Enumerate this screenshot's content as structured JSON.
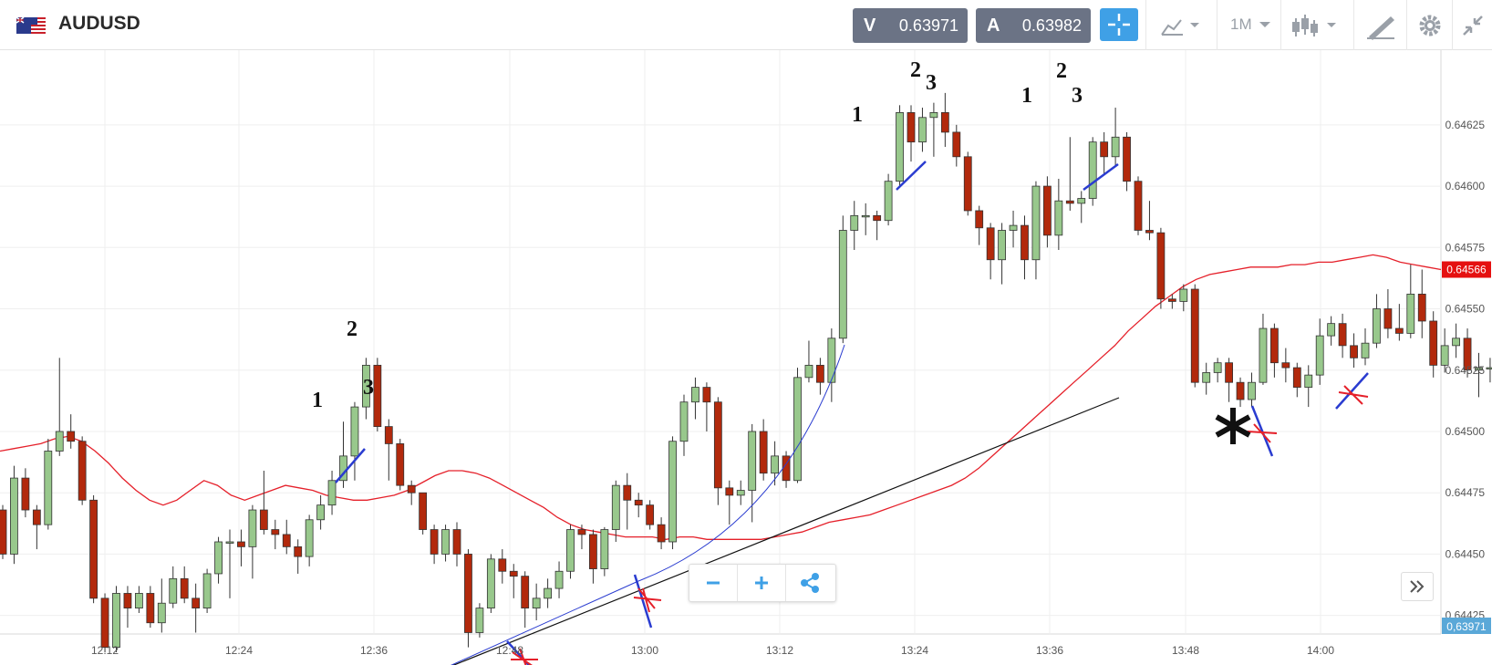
{
  "header": {
    "symbol": "AUDUSD",
    "sell": {
      "letter": "V",
      "value": "0.63971"
    },
    "buy": {
      "letter": "A",
      "value": "0.63982"
    },
    "timeframe": "1M"
  },
  "chart_data": {
    "type": "candlestick",
    "instrument": "AUDUSD",
    "timeframe": "1M",
    "y_axis": {
      "range": [
        0.6441,
        0.64648
      ],
      "ticks": [
        "0.64625",
        "0.64600",
        "0.64575",
        "0.64550",
        "0.64525",
        "0.64500",
        "0.64475",
        "0.64450",
        "0.64425"
      ]
    },
    "x_axis": {
      "ticks": [
        "12:12",
        "12:24",
        "12:36",
        "12:48",
        "13:00",
        "13:12",
        "13:24",
        "13:36",
        "13:48",
        "14:00"
      ]
    },
    "price_label": "0.64566",
    "current_label": "0,63971",
    "candles": [
      [
        0.64468,
        0.6445,
        0.6447,
        0.64448
      ],
      [
        0.6445,
        0.64481,
        0.64486,
        0.64446
      ],
      [
        0.64481,
        0.64468,
        0.64485,
        0.64465
      ],
      [
        0.64468,
        0.64462,
        0.6447,
        0.64452
      ],
      [
        0.64462,
        0.64492,
        0.64497,
        0.6446
      ],
      [
        0.64492,
        0.645,
        0.6453,
        0.6449
      ],
      [
        0.645,
        0.64496,
        0.64507,
        0.64493
      ],
      [
        0.64496,
        0.64472,
        0.64498,
        0.6447
      ],
      [
        0.64472,
        0.64432,
        0.64474,
        0.6443
      ],
      [
        0.64432,
        0.64412,
        0.64434,
        0.6441
      ],
      [
        0.64412,
        0.64434,
        0.64437,
        0.6441
      ],
      [
        0.64434,
        0.64428,
        0.64437,
        0.6442
      ],
      [
        0.64428,
        0.64434,
        0.64437,
        0.64426
      ],
      [
        0.64434,
        0.64422,
        0.64437,
        0.6442
      ],
      [
        0.64422,
        0.6443,
        0.6444,
        0.64418
      ],
      [
        0.6443,
        0.6444,
        0.64445,
        0.64428
      ],
      [
        0.6444,
        0.64432,
        0.64445,
        0.6443
      ],
      [
        0.64432,
        0.64428,
        0.64438,
        0.64418
      ],
      [
        0.64428,
        0.64442,
        0.64444,
        0.64426
      ],
      [
        0.64442,
        0.64455,
        0.64457,
        0.64438
      ],
      [
        0.64455,
        0.64455,
        0.6446,
        0.64432
      ],
      [
        0.64455,
        0.64453,
        0.6446,
        0.64445
      ],
      [
        0.64453,
        0.64468,
        0.6447,
        0.6444
      ],
      [
        0.64468,
        0.6446,
        0.64484,
        0.64458
      ],
      [
        0.6446,
        0.64458,
        0.64464,
        0.64452
      ],
      [
        0.64458,
        0.64453,
        0.64464,
        0.6445
      ],
      [
        0.64453,
        0.64449,
        0.64456,
        0.64442
      ],
      [
        0.64449,
        0.64464,
        0.64466,
        0.64445
      ],
      [
        0.64464,
        0.6447,
        0.64474,
        0.6446
      ],
      [
        0.6447,
        0.6448,
        0.64484,
        0.64466
      ],
      [
        0.6448,
        0.6449,
        0.64504,
        0.64477
      ],
      [
        0.6449,
        0.6451,
        0.64512,
        0.6448
      ],
      [
        0.6451,
        0.64527,
        0.6453,
        0.64505
      ],
      [
        0.64527,
        0.64502,
        0.6453,
        0.645
      ],
      [
        0.64502,
        0.64495,
        0.64505,
        0.6448
      ],
      [
        0.64495,
        0.64478,
        0.64497,
        0.64476
      ],
      [
        0.64478,
        0.64475,
        0.6448,
        0.6447
      ],
      [
        0.64475,
        0.6446,
        0.64475,
        0.64458
      ],
      [
        0.6446,
        0.6445,
        0.64462,
        0.64446
      ],
      [
        0.6445,
        0.6446,
        0.64462,
        0.64447
      ],
      [
        0.6446,
        0.6445,
        0.64463,
        0.64445
      ],
      [
        0.6445,
        0.64418,
        0.64452,
        0.64412
      ],
      [
        0.64418,
        0.64428,
        0.6443,
        0.64416
      ],
      [
        0.64428,
        0.64448,
        0.6445,
        0.64426
      ],
      [
        0.64448,
        0.64443,
        0.64452,
        0.64438
      ],
      [
        0.64443,
        0.64441,
        0.64446,
        0.64432
      ],
      [
        0.64441,
        0.64428,
        0.64443,
        0.6442
      ],
      [
        0.64428,
        0.64432,
        0.64438,
        0.64423
      ],
      [
        0.64432,
        0.64436,
        0.6444,
        0.64428
      ],
      [
        0.64436,
        0.64443,
        0.64447,
        0.64432
      ],
      [
        0.64443,
        0.6446,
        0.64462,
        0.6444
      ],
      [
        0.6446,
        0.64458,
        0.64462,
        0.64452
      ],
      [
        0.64458,
        0.64444,
        0.6446,
        0.64438
      ],
      [
        0.64444,
        0.6446,
        0.64461,
        0.64441
      ],
      [
        0.6446,
        0.64478,
        0.6448,
        0.64455
      ],
      [
        0.64478,
        0.64472,
        0.64483,
        0.6446
      ],
      [
        0.64472,
        0.6447,
        0.64475,
        0.64465
      ],
      [
        0.6447,
        0.64462,
        0.64472,
        0.6446
      ],
      [
        0.64462,
        0.64455,
        0.64465,
        0.64452
      ],
      [
        0.64455,
        0.64496,
        0.64498,
        0.64452
      ],
      [
        0.64496,
        0.64512,
        0.64515,
        0.6449
      ],
      [
        0.64512,
        0.64518,
        0.64522,
        0.64505
      ],
      [
        0.64518,
        0.64512,
        0.6452,
        0.645
      ],
      [
        0.64512,
        0.64477,
        0.64514,
        0.6447
      ],
      [
        0.64477,
        0.64474,
        0.6448,
        0.64462
      ],
      [
        0.64474,
        0.64476,
        0.6448,
        0.6447
      ],
      [
        0.64476,
        0.645,
        0.64503,
        0.64463
      ],
      [
        0.645,
        0.64483,
        0.64505,
        0.6448
      ],
      [
        0.64483,
        0.6449,
        0.64496,
        0.64478
      ],
      [
        0.6449,
        0.6448,
        0.64492,
        0.64477
      ],
      [
        0.6448,
        0.64522,
        0.64526,
        0.64479
      ],
      [
        0.64522,
        0.64527,
        0.64537,
        0.6452
      ],
      [
        0.64527,
        0.6452,
        0.6453,
        0.64515
      ],
      [
        0.6452,
        0.64538,
        0.64542,
        0.64512
      ],
      [
        0.64538,
        0.64582,
        0.64588,
        0.64536
      ],
      [
        0.64582,
        0.64588,
        0.64594,
        0.64574
      ],
      [
        0.64588,
        0.64588,
        0.64593,
        0.6458
      ],
      [
        0.64588,
        0.64586,
        0.6459,
        0.64578
      ],
      [
        0.64586,
        0.64602,
        0.64605,
        0.64584
      ],
      [
        0.64602,
        0.6463,
        0.64633,
        0.646
      ],
      [
        0.6463,
        0.64618,
        0.64633,
        0.6461
      ],
      [
        0.64618,
        0.64628,
        0.64632,
        0.64614
      ],
      [
        0.64628,
        0.6463,
        0.64634,
        0.64612
      ],
      [
        0.6463,
        0.64622,
        0.64638,
        0.64616
      ],
      [
        0.64622,
        0.64612,
        0.64625,
        0.64608
      ],
      [
        0.64612,
        0.6459,
        0.64614,
        0.64588
      ],
      [
        0.6459,
        0.64583,
        0.64592,
        0.64576
      ],
      [
        0.64583,
        0.6457,
        0.64585,
        0.64562
      ],
      [
        0.6457,
        0.64582,
        0.64585,
        0.6456
      ],
      [
        0.64582,
        0.64584,
        0.6459,
        0.64575
      ],
      [
        0.64584,
        0.6457,
        0.64588,
        0.64562
      ],
      [
        0.6457,
        0.646,
        0.64602,
        0.64562
      ],
      [
        0.646,
        0.6458,
        0.64604,
        0.64575
      ],
      [
        0.6458,
        0.64594,
        0.64603,
        0.64574
      ],
      [
        0.64594,
        0.64593,
        0.6462,
        0.6459
      ],
      [
        0.64593,
        0.64595,
        0.64598,
        0.64585
      ],
      [
        0.64595,
        0.64618,
        0.6462,
        0.64592
      ],
      [
        0.64618,
        0.64612,
        0.64622,
        0.64605
      ],
      [
        0.64612,
        0.6462,
        0.64632,
        0.64608
      ],
      [
        0.6462,
        0.64602,
        0.64622,
        0.64598
      ],
      [
        0.64602,
        0.64582,
        0.64604,
        0.6458
      ],
      [
        0.64582,
        0.64581,
        0.64594,
        0.64578
      ],
      [
        0.64581,
        0.64554,
        0.64583,
        0.6455
      ],
      [
        0.64554,
        0.64553,
        0.64556,
        0.6455
      ],
      [
        0.64553,
        0.64558,
        0.6456,
        0.64549
      ],
      [
        0.64558,
        0.6452,
        0.6456,
        0.64518
      ],
      [
        0.6452,
        0.64524,
        0.64528,
        0.64515
      ],
      [
        0.64524,
        0.64528,
        0.6453,
        0.6452
      ],
      [
        0.64528,
        0.6452,
        0.6453,
        0.64512
      ],
      [
        0.6452,
        0.64513,
        0.64522,
        0.6451
      ],
      [
        0.64513,
        0.6452,
        0.64524,
        0.6451
      ],
      [
        0.6452,
        0.64542,
        0.64548,
        0.64519
      ],
      [
        0.64542,
        0.64528,
        0.64544,
        0.64522
      ],
      [
        0.64528,
        0.64526,
        0.64534,
        0.6452
      ],
      [
        0.64526,
        0.64518,
        0.64528,
        0.64514
      ],
      [
        0.64518,
        0.64523,
        0.64527,
        0.6451
      ],
      [
        0.64523,
        0.64539,
        0.64546,
        0.64519
      ],
      [
        0.64539,
        0.64544,
        0.64547,
        0.64535
      ],
      [
        0.64544,
        0.64535,
        0.64548,
        0.6453
      ],
      [
        0.64535,
        0.6453,
        0.6454,
        0.64526
      ],
      [
        0.6453,
        0.64536,
        0.64542,
        0.64527
      ],
      [
        0.64536,
        0.6455,
        0.64556,
        0.64534
      ],
      [
        0.6455,
        0.64542,
        0.64558,
        0.64538
      ],
      [
        0.64542,
        0.6454,
        0.64552,
        0.64537
      ],
      [
        0.6454,
        0.64556,
        0.64568,
        0.64538
      ],
      [
        0.64556,
        0.64545,
        0.64566,
        0.64538
      ],
      [
        0.64545,
        0.64527,
        0.64549,
        0.64522
      ],
      [
        0.64527,
        0.64535,
        0.64542,
        0.64524
      ],
      [
        0.64535,
        0.64538,
        0.64544,
        0.6453
      ],
      [
        0.64538,
        0.64525,
        0.64542,
        0.64522
      ],
      [
        0.64525,
        0.64526,
        0.64532,
        0.64514
      ],
      [
        0.64526,
        0.64526,
        0.6453,
        0.6452
      ],
      [
        0.64526,
        0.64568,
        0.64578,
        0.64524
      ]
    ],
    "moving_average": [
      0.64492,
      0.64493,
      0.64494,
      0.64495,
      0.64497,
      0.64498,
      0.64496,
      0.64492,
      0.64487,
      0.64481,
      0.64476,
      0.64472,
      0.6447,
      0.64472,
      0.64476,
      0.6448,
      0.64478,
      0.64474,
      0.64472,
      0.64474,
      0.64476,
      0.64478,
      0.64477,
      0.64476,
      0.64474,
      0.64473,
      0.64472,
      0.64472,
      0.64473,
      0.64474,
      0.64476,
      0.64479,
      0.64482,
      0.64484,
      0.64484,
      0.64483,
      0.64481,
      0.64478,
      0.64475,
      0.64472,
      0.64469,
      0.64465,
      0.64462,
      0.6446,
      0.64459,
      0.64458,
      0.64457,
      0.64457,
      0.64457,
      0.64456,
      0.64457,
      0.64457,
      0.64456,
      0.64456,
      0.64456,
      0.64456,
      0.64456,
      0.64457,
      0.64458,
      0.64459,
      0.64461,
      0.64463,
      0.64464,
      0.64465,
      0.64466,
      0.64468,
      0.6447,
      0.64472,
      0.64474,
      0.64476,
      0.64478,
      0.64481,
      0.64485,
      0.6449,
      0.64495,
      0.645,
      0.64505,
      0.6451,
      0.64515,
      0.6452,
      0.64525,
      0.6453,
      0.64535,
      0.64541,
      0.64546,
      0.64551,
      0.64555,
      0.64559,
      0.64562,
      0.64564,
      0.64565,
      0.64566,
      0.64567,
      0.64567,
      0.64567,
      0.64568,
      0.64568,
      0.64569,
      0.64569,
      0.6457,
      0.64571,
      0.64572,
      0.64571,
      0.64569,
      0.64568,
      0.64567,
      0.64566
    ],
    "annotations": [
      "1",
      "2",
      "3",
      "1",
      "2",
      "3",
      "1",
      "2",
      "3",
      "✱"
    ]
  }
}
